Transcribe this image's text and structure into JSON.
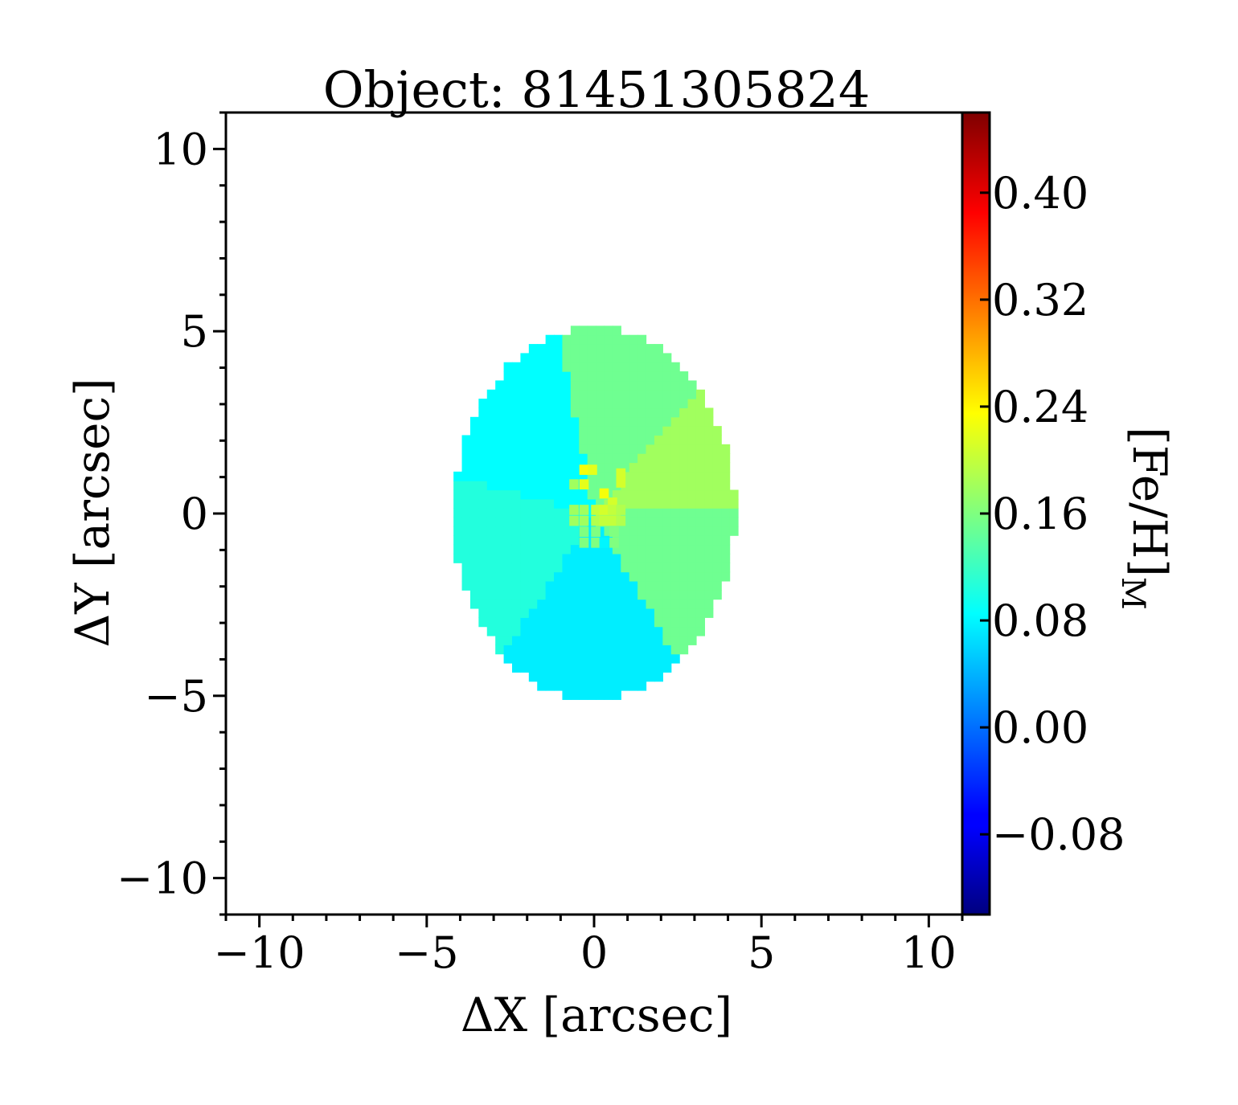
{
  "chart_data": {
    "type": "heatmap",
    "title": "Object: 81451305824",
    "xlabel": "ΔX [arcsec]",
    "ylabel": "ΔY [arcsec]",
    "xlim": [
      -11,
      11
    ],
    "ylim": [
      -11,
      11
    ],
    "x_ticks": [
      -10,
      -5,
      0,
      5,
      10
    ],
    "x_tick_labels": [
      "−10",
      "−5",
      "0",
      "5",
      "10"
    ],
    "y_ticks": [
      -10,
      -5,
      0,
      5,
      10
    ],
    "y_tick_labels": [
      "−10",
      "−5",
      "0",
      "5",
      "10"
    ],
    "colorbar": {
      "label_main": "[Fe/H]",
      "label_sub": "M",
      "colormap": "jet",
      "vmin": -0.14,
      "vmax": 0.46,
      "ticks": [
        -0.08,
        0.0,
        0.08,
        0.16,
        0.24,
        0.32,
        0.4
      ],
      "tick_labels": [
        "−0.08",
        "0.00",
        "0.08",
        "0.16",
        "0.24",
        "0.32",
        "0.40"
      ]
    },
    "map": {
      "pixel_size_arcsec": 0.25,
      "ellipse": {
        "center": [
          0.0,
          0.0
        ],
        "semi_x": 4.2,
        "semi_y": 5.1
      },
      "sectors": [
        {
          "name": "upper-left",
          "angle_range_deg": [
            102,
            166
          ],
          "value": 0.085
        },
        {
          "name": "top",
          "angle_range_deg": [
            48,
            102
          ],
          "value": 0.15
        },
        {
          "name": "upper-right",
          "angle_range_deg": [
            2,
            48
          ],
          "value": 0.18
        },
        {
          "name": "lower-right",
          "angle_range_deg": [
            -58,
            2
          ],
          "value": 0.15
        },
        {
          "name": "bottom",
          "angle_range_deg": [
            -125,
            -58
          ],
          "value": 0.075
        },
        {
          "name": "lower-left",
          "angle_range_deg": [
            -194,
            -125
          ],
          "value": 0.105
        }
      ],
      "core_cells": [
        {
          "x": -0.3,
          "y": 1.2,
          "value": 0.23
        },
        {
          "x": -0.05,
          "y": 1.2,
          "value": 0.22
        },
        {
          "x": 0.8,
          "y": 1.1,
          "value": 0.21
        },
        {
          "x": 0.8,
          "y": 0.85,
          "value": 0.21
        },
        {
          "x": -0.6,
          "y": 0.8,
          "value": 0.18
        },
        {
          "x": -0.3,
          "y": 0.8,
          "value": 0.22
        },
        {
          "x": 0.3,
          "y": 0.55,
          "value": 0.23
        },
        {
          "x": 0.55,
          "y": 0.3,
          "value": 0.21
        },
        {
          "x": -0.6,
          "y": 0.1,
          "value": 0.18
        },
        {
          "x": -0.3,
          "y": 0.1,
          "value": 0.18
        },
        {
          "x": 0.05,
          "y": 0.1,
          "value": 0.2
        },
        {
          "x": 0.3,
          "y": 0.1,
          "value": 0.21
        },
        {
          "x": 0.55,
          "y": 0.1,
          "value": 0.2
        },
        {
          "x": 0.8,
          "y": 0.1,
          "value": 0.19
        },
        {
          "x": -0.6,
          "y": -0.2,
          "value": 0.18
        },
        {
          "x": -0.3,
          "y": -0.2,
          "value": 0.18
        },
        {
          "x": 0.05,
          "y": -0.2,
          "value": 0.19
        },
        {
          "x": 0.3,
          "y": -0.2,
          "value": 0.2
        },
        {
          "x": 0.55,
          "y": -0.2,
          "value": 0.2
        },
        {
          "x": 0.8,
          "y": -0.2,
          "value": 0.19
        },
        {
          "x": -0.3,
          "y": -0.5,
          "value": 0.16
        },
        {
          "x": 0.05,
          "y": -0.5,
          "value": 0.16
        },
        {
          "x": 0.6,
          "y": -0.5,
          "value": 0.16
        },
        {
          "x": -0.3,
          "y": -0.8,
          "value": 0.16
        },
        {
          "x": 0.05,
          "y": -0.8,
          "value": 0.16
        },
        {
          "x": 0.3,
          "y": -0.8,
          "value": 0.08
        },
        {
          "x": 0.6,
          "y": -0.8,
          "value": 0.16
        }
      ]
    },
    "grid": false
  }
}
